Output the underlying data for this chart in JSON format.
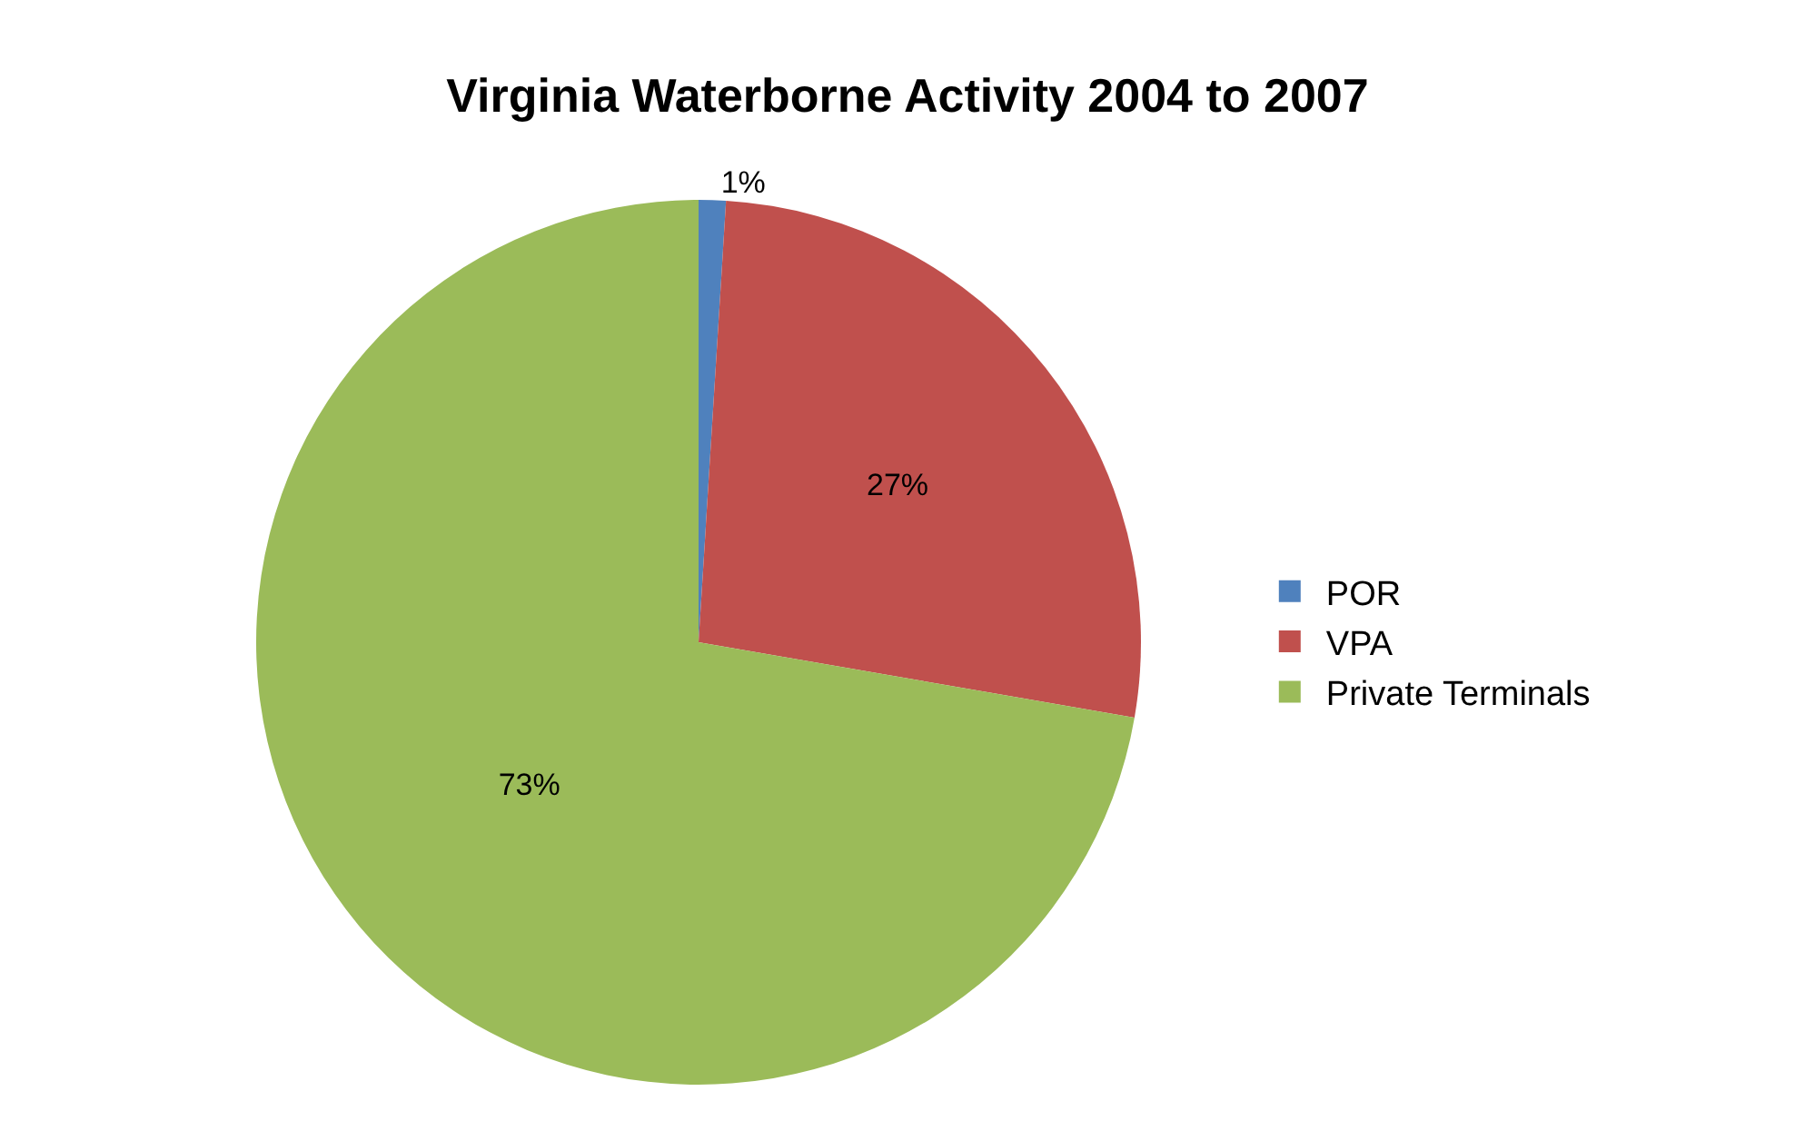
{
  "chart_data": {
    "type": "pie",
    "title": "Virginia Waterborne Activity 2004 to 2007",
    "categories": [
      "POR",
      "VPA",
      "Private Terminals"
    ],
    "values": [
      1,
      27,
      73
    ],
    "colors": [
      "#4f81bd",
      "#c0504d",
      "#9bbb59"
    ],
    "value_labels": [
      "1%",
      "27%",
      "73%"
    ],
    "legend": "right"
  }
}
